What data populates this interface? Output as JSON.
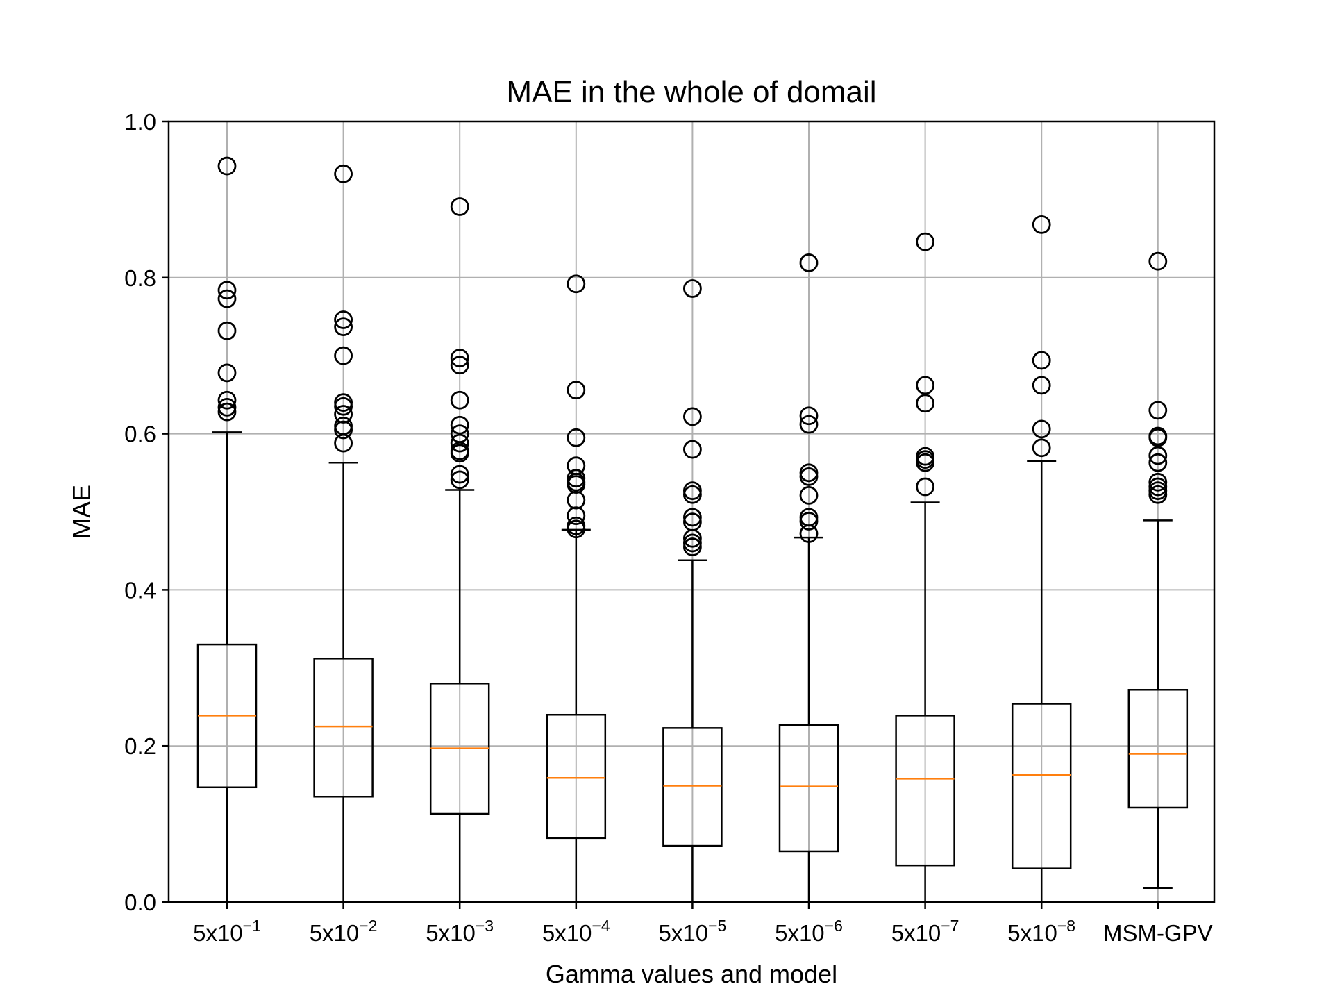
{
  "chart_data": {
    "type": "boxplot",
    "title": "MAE in the whole of domail",
    "xlabel": "Gamma values and model",
    "ylabel": "MAE",
    "ylim": [
      0.0,
      1.0
    ],
    "yticks": [
      "0.0",
      "0.2",
      "0.4",
      "0.6",
      "0.8",
      "1.0"
    ],
    "ytick_values": [
      0.0,
      0.2,
      0.4,
      0.6,
      0.8,
      1.0
    ],
    "grid": true,
    "colors": {
      "box": "#000000",
      "median": "#ff7f0e",
      "grid": "#b0b0b0"
    },
    "categories": [
      {
        "base": "5x10",
        "exp": "−1"
      },
      {
        "base": "5x10",
        "exp": "−2"
      },
      {
        "base": "5x10",
        "exp": "−3"
      },
      {
        "base": "5x10",
        "exp": "−4"
      },
      {
        "base": "5x10",
        "exp": "−5"
      },
      {
        "base": "5x10",
        "exp": "−6"
      },
      {
        "base": "5x10",
        "exp": "−7"
      },
      {
        "base": "5x10",
        "exp": "−8"
      },
      {
        "base": "MSM-GPV",
        "exp": ""
      }
    ],
    "boxes": [
      {
        "whisker_low": 0.0,
        "q1": 0.147,
        "median": 0.239,
        "q3": 0.33,
        "whisker_high": 0.602,
        "outliers": [
          0.943,
          0.784,
          0.773,
          0.732,
          0.678,
          0.643,
          0.634,
          0.628
        ]
      },
      {
        "whisker_low": 0.0,
        "q1": 0.135,
        "median": 0.225,
        "q3": 0.312,
        "whisker_high": 0.563,
        "outliers": [
          0.933,
          0.746,
          0.737,
          0.7,
          0.64,
          0.635,
          0.625,
          0.61,
          0.605,
          0.588
        ]
      },
      {
        "whisker_low": 0.0,
        "q1": 0.113,
        "median": 0.197,
        "q3": 0.28,
        "whisker_high": 0.528,
        "outliers": [
          0.891,
          0.697,
          0.688,
          0.643,
          0.611,
          0.6,
          0.588,
          0.578,
          0.575,
          0.548,
          0.541
        ]
      },
      {
        "whisker_low": 0.0,
        "q1": 0.082,
        "median": 0.159,
        "q3": 0.24,
        "whisker_high": 0.477,
        "outliers": [
          0.792,
          0.656,
          0.595,
          0.559,
          0.543,
          0.538,
          0.535,
          0.515,
          0.495,
          0.482,
          0.478
        ]
      },
      {
        "whisker_low": 0.0,
        "q1": 0.072,
        "median": 0.149,
        "q3": 0.223,
        "whisker_high": 0.438,
        "outliers": [
          0.786,
          0.622,
          0.58,
          0.527,
          0.522,
          0.493,
          0.487,
          0.466,
          0.46,
          0.455
        ]
      },
      {
        "whisker_low": 0.0,
        "q1": 0.065,
        "median": 0.148,
        "q3": 0.227,
        "whisker_high": 0.467,
        "outliers": [
          0.819,
          0.623,
          0.612,
          0.55,
          0.545,
          0.521,
          0.493,
          0.488,
          0.472
        ]
      },
      {
        "whisker_low": 0.0,
        "q1": 0.047,
        "median": 0.158,
        "q3": 0.239,
        "whisker_high": 0.512,
        "outliers": [
          0.846,
          0.662,
          0.639,
          0.571,
          0.567,
          0.563,
          0.532
        ]
      },
      {
        "whisker_low": 0.0,
        "q1": 0.043,
        "median": 0.163,
        "q3": 0.254,
        "whisker_high": 0.565,
        "outliers": [
          0.868,
          0.694,
          0.662,
          0.606,
          0.582
        ]
      },
      {
        "whisker_low": 0.018,
        "q1": 0.121,
        "median": 0.19,
        "q3": 0.272,
        "whisker_high": 0.489,
        "outliers": [
          0.821,
          0.63,
          0.597,
          0.595,
          0.572,
          0.563,
          0.538,
          0.532,
          0.527,
          0.522
        ]
      }
    ]
  }
}
